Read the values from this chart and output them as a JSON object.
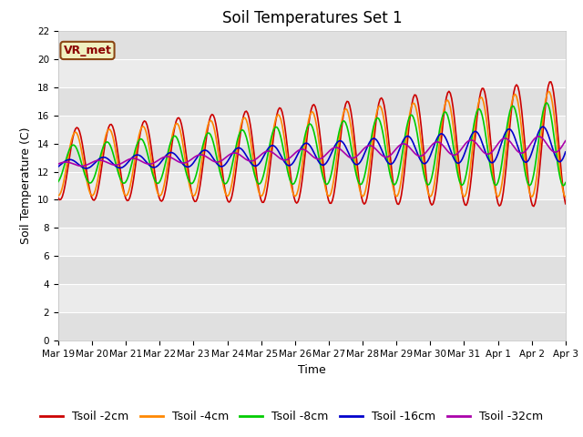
{
  "title": "Soil Temperatures Set 1",
  "xlabel": "Time",
  "ylabel": "Soil Temperature (C)",
  "ylim": [
    0,
    22
  ],
  "date_labels": [
    "Mar 19",
    "Mar 20",
    "Mar 21",
    "Mar 22",
    "Mar 23",
    "Mar 24",
    "Mar 25",
    "Mar 26",
    "Mar 27",
    "Mar 28",
    "Mar 29",
    "Mar 30",
    "Mar 31",
    "Apr 1",
    "Apr 2",
    "Apr 3"
  ],
  "series_colors": [
    "#cc0000",
    "#ff8800",
    "#00cc00",
    "#0000cc",
    "#aa00aa"
  ],
  "series_labels": [
    "Tsoil -2cm",
    "Tsoil -4cm",
    "Tsoil -8cm",
    "Tsoil -16cm",
    "Tsoil -32cm"
  ],
  "annotation_text": "VR_met",
  "background_color": "#ffffff",
  "band_colors": [
    "#e0e0e0",
    "#ebebeb"
  ],
  "grid_line_color": "#ffffff",
  "title_fontsize": 12,
  "label_fontsize": 9,
  "tick_fontsize": 7.5,
  "legend_fontsize": 9,
  "annotation_fontsize": 9
}
